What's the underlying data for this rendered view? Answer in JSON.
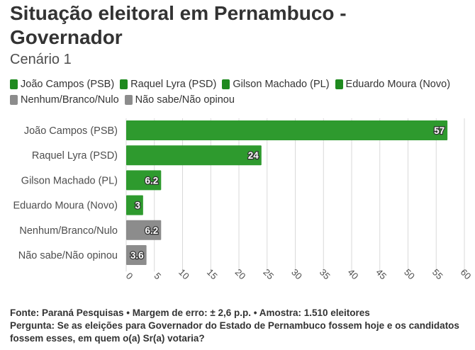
{
  "header": {
    "title": "Situação eleitoral em Pernambuco - Governador",
    "subtitle": "Cenário 1"
  },
  "colors": {
    "green": "#2e9a2e",
    "gray": "#8c8c8c",
    "grid": "#d9d9d9",
    "text": "#333333"
  },
  "legend": [
    {
      "label": "João Campos (PSB)",
      "color": "#1f8a1f"
    },
    {
      "label": "Raquel Lyra (PSD)",
      "color": "#1f8a1f"
    },
    {
      "label": "Gilson Machado (PL)",
      "color": "#1f8a1f"
    },
    {
      "label": "Eduardo Moura (Novo)",
      "color": "#1f8a1f"
    },
    {
      "label": "Nenhum/Branco/Nulo",
      "color": "#8c8c8c"
    },
    {
      "label": "Não sabe/Não opinou",
      "color": "#8c8c8c"
    }
  ],
  "chart_data": {
    "type": "bar",
    "orientation": "horizontal",
    "categories": [
      "João Campos (PSB)",
      "Raquel Lyra (PSD)",
      "Gilson Machado (PL)",
      "Eduardo Moura (Novo)",
      "Nenhum/Branco/Nulo",
      "Não sabe/Não opinou"
    ],
    "values": [
      57,
      24,
      6.2,
      3,
      6.2,
      3.6
    ],
    "value_labels": [
      "57",
      "24",
      "6.2",
      "3",
      "6.2",
      "3.6"
    ],
    "bar_colors": [
      "#2e9a2e",
      "#2e9a2e",
      "#2e9a2e",
      "#2e9a2e",
      "#8c8c8c",
      "#8c8c8c"
    ],
    "xlim": [
      0,
      60
    ],
    "xticks": [
      0,
      5,
      10,
      15,
      20,
      25,
      30,
      35,
      40,
      45,
      50,
      55,
      60
    ],
    "grid": true,
    "legend_position": "top-left"
  },
  "footer": {
    "source": "Fonte: Paraná Pesquisas • Margem de erro: ± 2,6 p.p. • Amostra: 1.510 eleitores",
    "question": "Pergunta: Se as eleições para Governador do Estado de Pernambuco fossem hoje e os candidatos fossem esses, em quem o(a) Sr(a) votaria?"
  }
}
